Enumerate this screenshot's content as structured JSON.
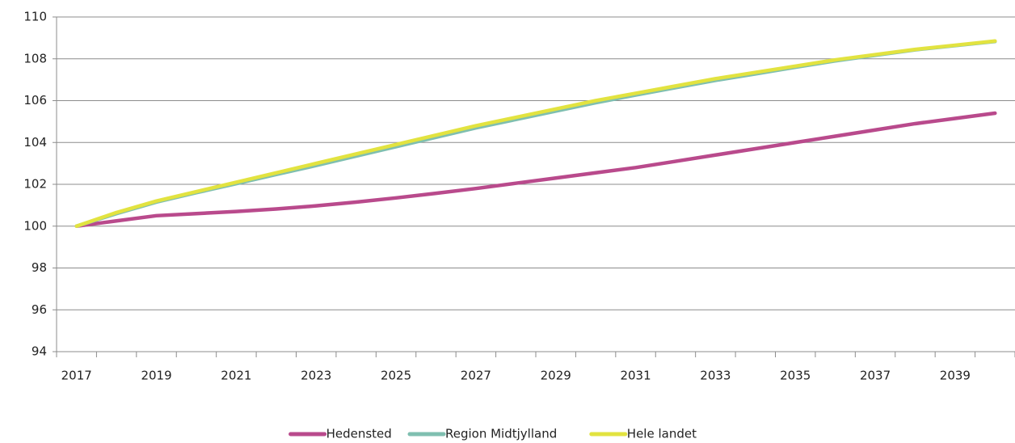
{
  "chart_data": {
    "type": "line",
    "categories": [
      "2017",
      null,
      "2019",
      null,
      "2021",
      null,
      "2023",
      null,
      "2025",
      null,
      "2027",
      null,
      "2029",
      null,
      "2031",
      null,
      "2033",
      null,
      "2035",
      null,
      "2037",
      null,
      "2039",
      null
    ],
    "series": [
      {
        "name": "Hedensted",
        "color": "#b94a8c",
        "values": [
          100,
          100.25,
          100.5,
          100.6,
          100.7,
          100.82,
          100.97,
          101.15,
          101.35,
          101.57,
          101.8,
          102.05,
          102.3,
          102.55,
          102.8,
          103.1,
          103.4,
          103.7,
          104.0,
          104.3,
          104.6,
          104.9,
          105.15,
          105.4
        ]
      },
      {
        "name": "Region Midtjylland",
        "color": "#7fbfb0",
        "values": [
          100,
          100.6,
          101.15,
          101.6,
          102.03,
          102.47,
          102.9,
          103.35,
          103.8,
          104.25,
          104.7,
          105.1,
          105.5,
          105.9,
          106.27,
          106.62,
          106.97,
          107.28,
          107.6,
          107.9,
          108.17,
          108.43,
          108.63,
          108.83
        ]
      },
      {
        "name": "Hele landet",
        "color": "#e2e340",
        "values": [
          100,
          100.65,
          101.2,
          101.65,
          102.1,
          102.55,
          103.0,
          103.45,
          103.9,
          104.35,
          104.8,
          105.2,
          105.6,
          106.0,
          106.35,
          106.7,
          107.05,
          107.35,
          107.65,
          107.95,
          108.2,
          108.45,
          108.65,
          108.85
        ]
      }
    ],
    "ylim": [
      94,
      110
    ],
    "yticks": [
      94,
      96,
      98,
      100,
      102,
      104,
      106,
      108,
      110
    ],
    "grid": true,
    "legend": "bottom"
  }
}
